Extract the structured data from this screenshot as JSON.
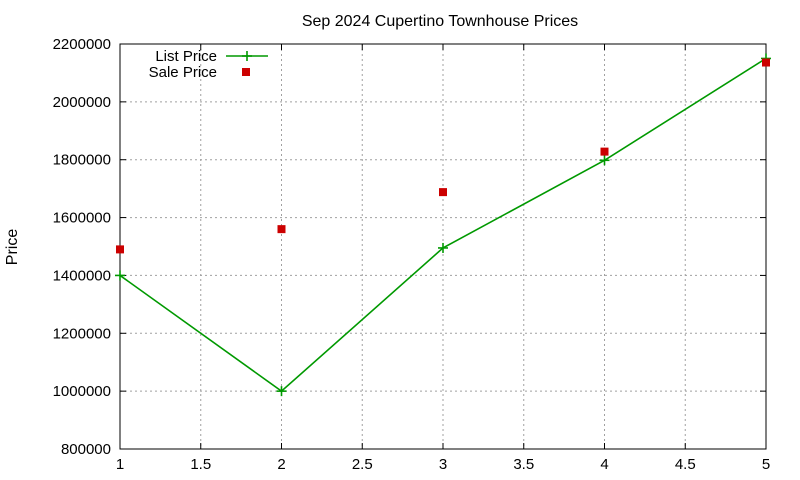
{
  "chart_data": {
    "type": "line",
    "title": "Sep 2024 Cupertino Townhouse Prices",
    "xlabel": "",
    "ylabel": "Price",
    "xlim": [
      1,
      5
    ],
    "ylim": [
      800000,
      2200000
    ],
    "xticks": [
      "1",
      "1.5",
      "2",
      "2.5",
      "3",
      "3.5",
      "4",
      "4.5",
      "5"
    ],
    "yticks": [
      "800000",
      "1000000",
      "1200000",
      "1400000",
      "1600000",
      "1800000",
      "2000000",
      "2200000"
    ],
    "grid": true,
    "legend_position": "top-left",
    "series": [
      {
        "name": "List Price",
        "style": "line-with-plus-markers",
        "color": "#009900",
        "x": [
          1,
          2,
          3,
          4,
          5
        ],
        "y": [
          1400000,
          1000000,
          1495000,
          1798000,
          2150000
        ]
      },
      {
        "name": "Sale Price",
        "style": "square-points",
        "color": "#cc0000",
        "x": [
          1,
          2,
          3,
          4,
          5
        ],
        "y": [
          1490000,
          1560000,
          1688000,
          1828000,
          2136000
        ]
      }
    ]
  }
}
